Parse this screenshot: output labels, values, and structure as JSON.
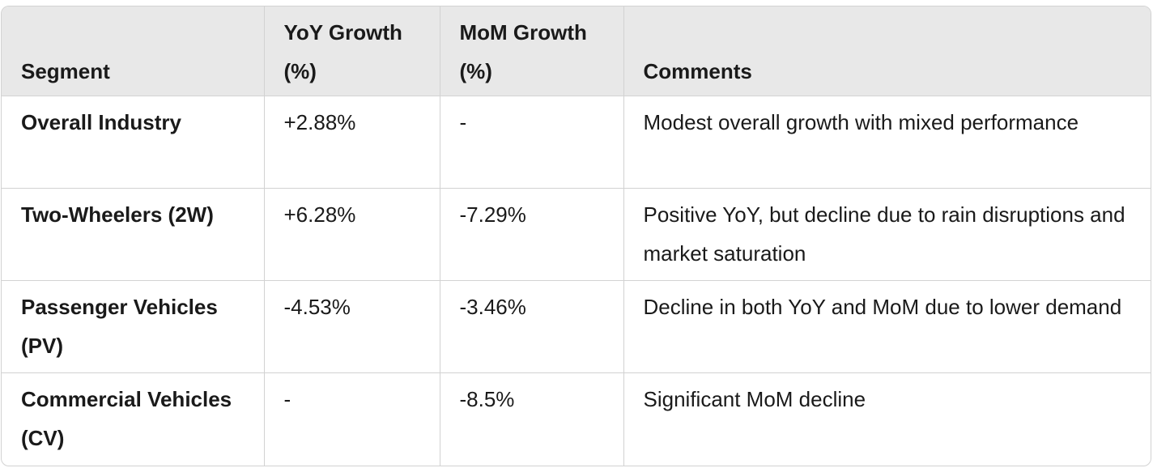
{
  "table": {
    "headers": [
      "Segment",
      "YoY Growth (%)",
      "MoM Growth (%)",
      "Comments"
    ],
    "rows": [
      {
        "segment": "Overall Industry",
        "yoy": "+2.88%",
        "mom": "-",
        "comments": "Modest overall growth with mixed performance"
      },
      {
        "segment": "Two-Wheelers (2W)",
        "yoy": "+6.28%",
        "mom": "-7.29%",
        "comments": "Positive YoY, but decline due to rain disruptions and market saturation"
      },
      {
        "segment": "Passenger Vehicles (PV)",
        "yoy": "-4.53%",
        "mom": "-3.46%",
        "comments": "Decline in both YoY and MoM due to lower demand"
      },
      {
        "segment": "Commercial Vehicles (CV)",
        "yoy": "-",
        "mom": "-8.5%",
        "comments": "Significant MoM decline"
      }
    ]
  }
}
